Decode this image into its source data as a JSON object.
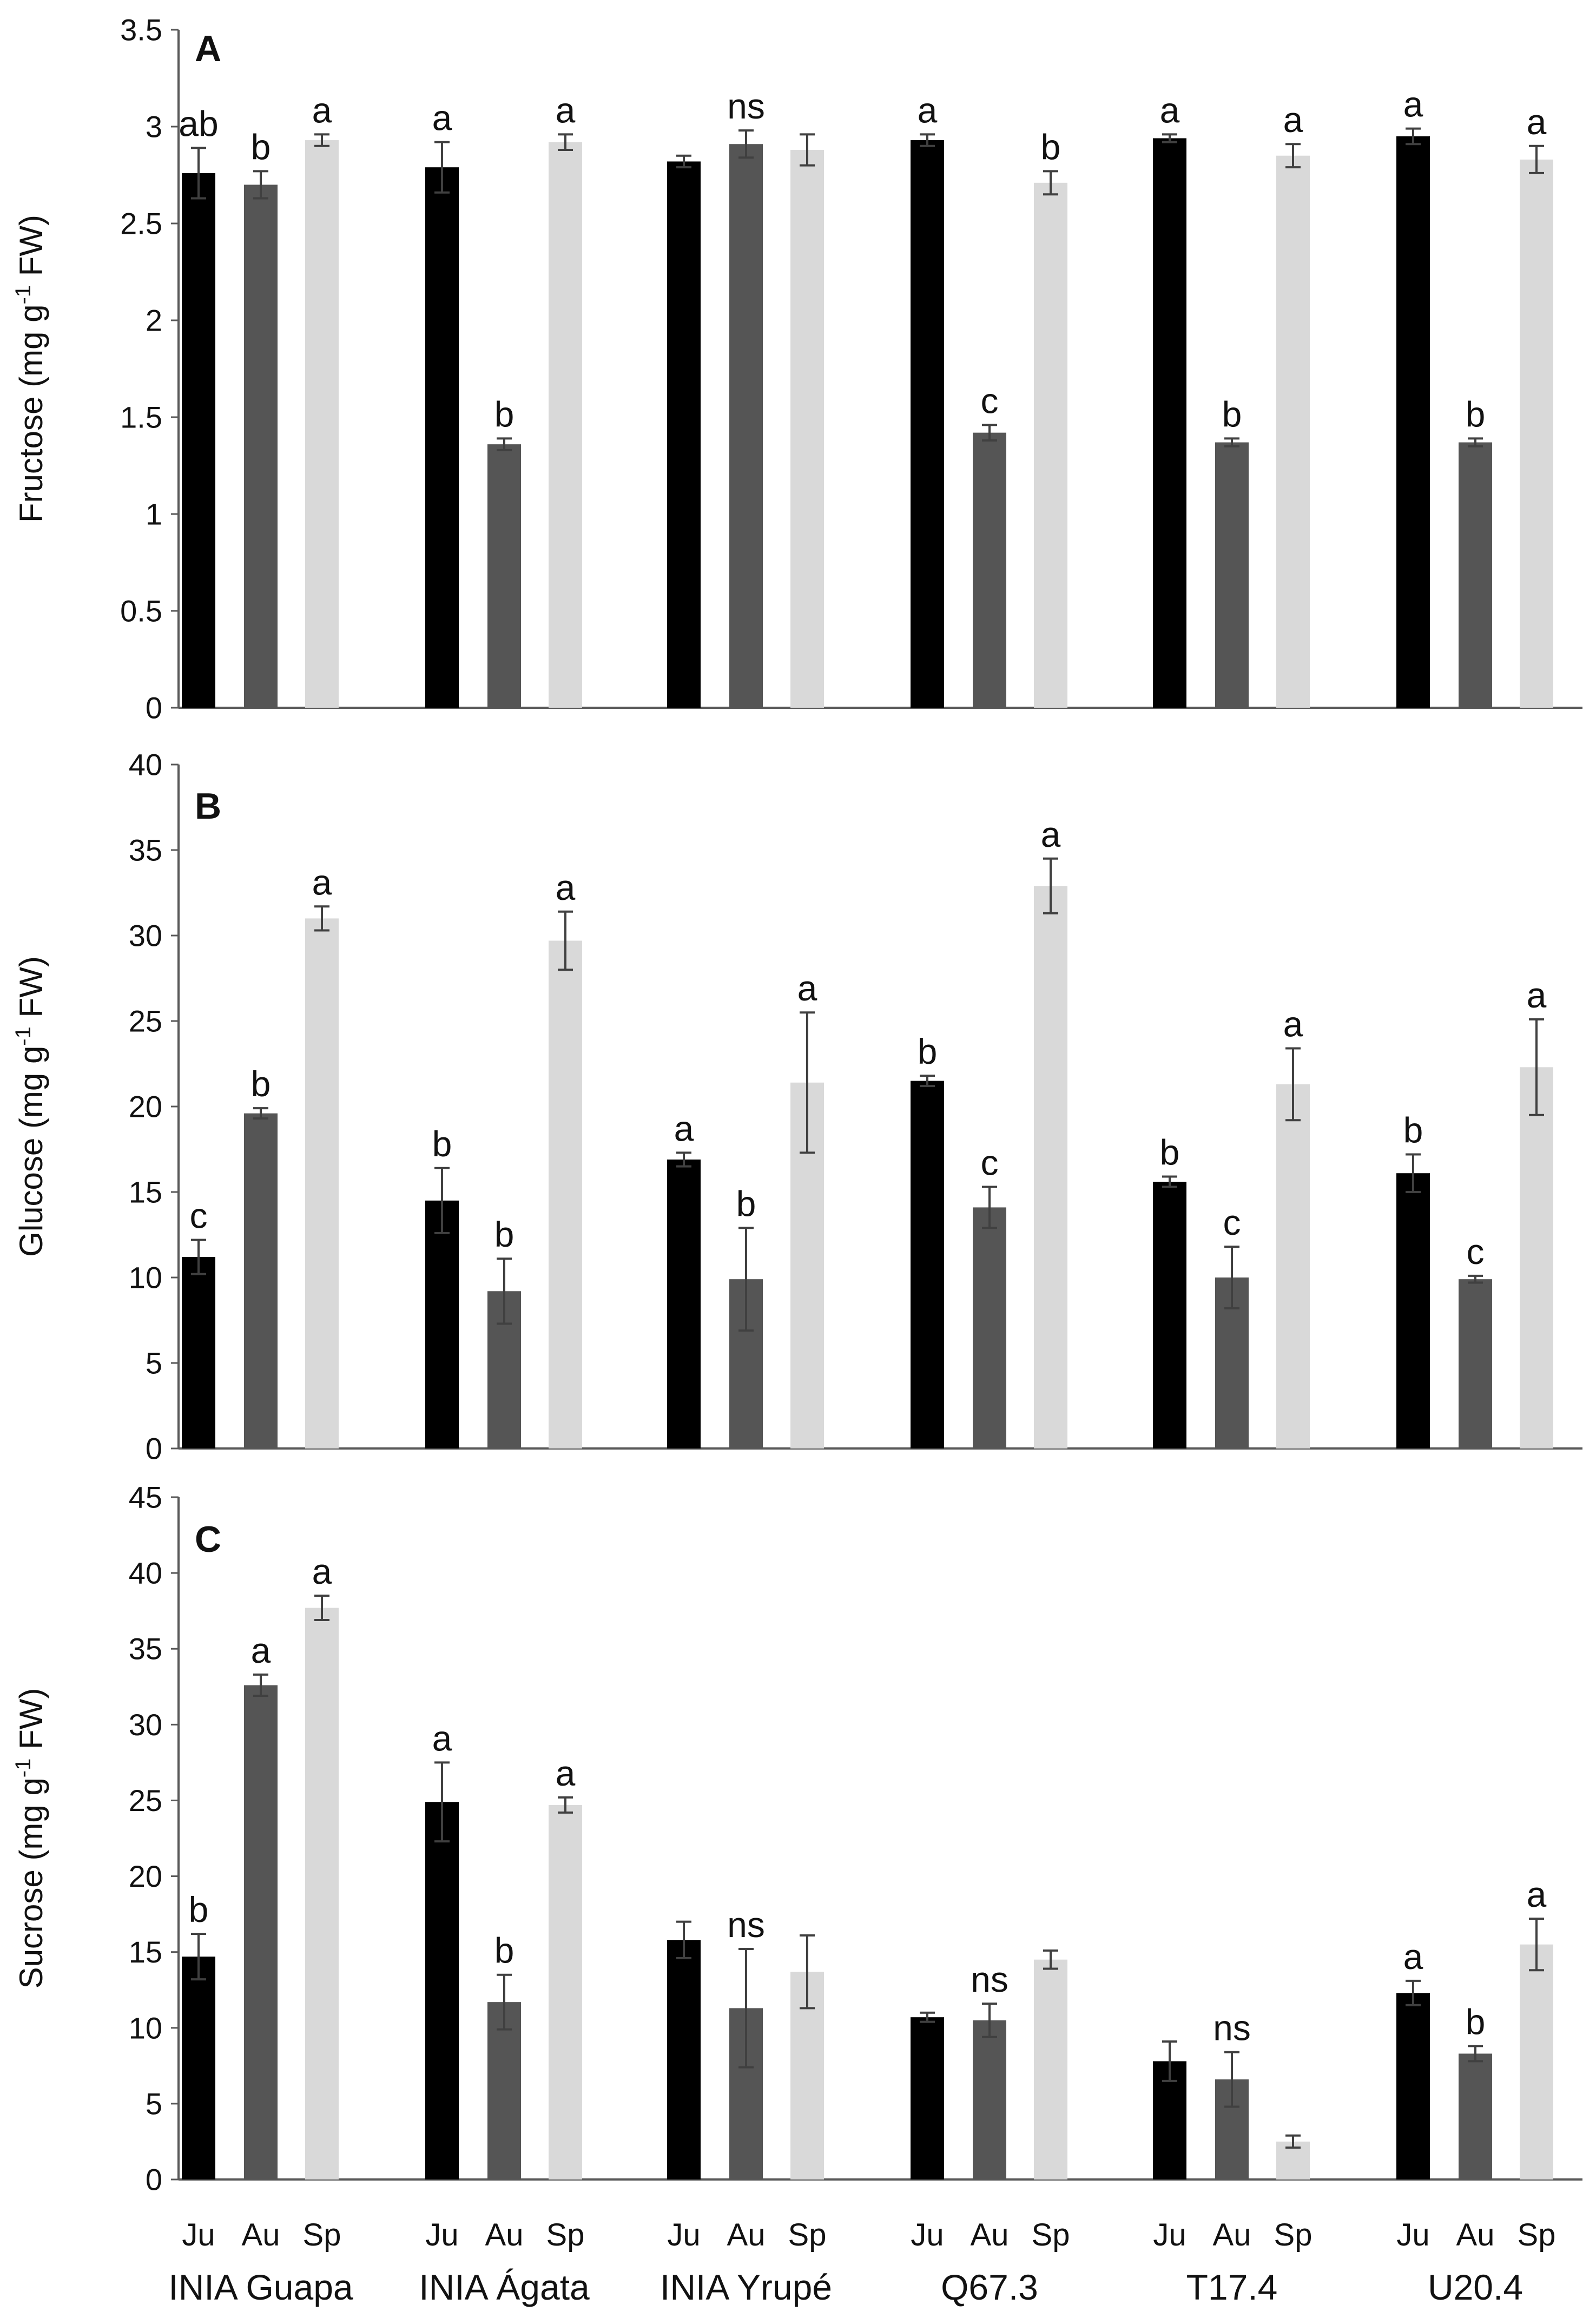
{
  "colors": {
    "Ju": "#000000",
    "Au": "#555555",
    "Sp": "#d9d9d9",
    "axis": "#595959",
    "errorbar": "#404040"
  },
  "chart_data": [
    {
      "type": "bar",
      "panel": "A",
      "ylabel_main": "Fructose (mg g",
      "ylabel_sup": "-1",
      "ylabel_tail": " FW)",
      "ylim": [
        0,
        3.5
      ],
      "yticks": [
        "0",
        "0.5",
        "1",
        "1.5",
        "2",
        "2.5",
        "3",
        "3.5"
      ],
      "categories": [
        "INIA Guapa",
        "INIA Ágata",
        "INIA Yrupé",
        "Q67.3",
        "T17.4",
        "U20.4"
      ],
      "seasons": [
        "Ju",
        "Au",
        "Sp"
      ],
      "values": [
        [
          2.76,
          2.7,
          2.93
        ],
        [
          2.79,
          1.36,
          2.92
        ],
        [
          2.82,
          2.91,
          2.88
        ],
        [
          2.93,
          1.42,
          2.71
        ],
        [
          2.94,
          1.37,
          2.85
        ],
        [
          2.95,
          1.37,
          2.83
        ]
      ],
      "errors": [
        [
          0.13,
          0.07,
          0.03
        ],
        [
          0.13,
          0.03,
          0.04
        ],
        [
          0.03,
          0.07,
          0.08
        ],
        [
          0.03,
          0.04,
          0.06
        ],
        [
          0.02,
          0.02,
          0.06
        ],
        [
          0.04,
          0.02,
          0.07
        ]
      ],
      "labels": [
        [
          "ab",
          "b",
          "a"
        ],
        [
          "a",
          "b",
          "a"
        ],
        [
          "",
          "ns",
          ""
        ],
        [
          "a",
          "c",
          "b"
        ],
        [
          "a",
          "b",
          "a"
        ],
        [
          "a",
          "b",
          "a"
        ]
      ]
    },
    {
      "type": "bar",
      "panel": "B",
      "ylabel_main": "Glucose (mg g",
      "ylabel_sup": "-1",
      "ylabel_tail": " FW)",
      "ylim": [
        0,
        40
      ],
      "yticks": [
        "0",
        "5",
        "10",
        "15",
        "20",
        "25",
        "30",
        "35",
        "40"
      ],
      "categories": [
        "INIA Guapa",
        "INIA Ágata",
        "INIA Yrupé",
        "Q67.3",
        "T17.4",
        "U20.4"
      ],
      "seasons": [
        "Ju",
        "Au",
        "Sp"
      ],
      "values": [
        [
          11.2,
          19.6,
          31.0
        ],
        [
          14.5,
          9.2,
          29.7
        ],
        [
          16.9,
          9.9,
          21.4
        ],
        [
          21.5,
          14.1,
          32.9
        ],
        [
          15.6,
          10.0,
          21.3
        ],
        [
          16.1,
          9.9,
          22.3
        ]
      ],
      "errors": [
        [
          1.0,
          0.3,
          0.7
        ],
        [
          1.9,
          1.9,
          1.7
        ],
        [
          0.4,
          3.0,
          4.1
        ],
        [
          0.3,
          1.2,
          1.6
        ],
        [
          0.3,
          1.8,
          2.1
        ],
        [
          1.1,
          0.2,
          2.8
        ]
      ],
      "labels": [
        [
          "c",
          "b",
          "a"
        ],
        [
          "b",
          "b",
          "a"
        ],
        [
          "a",
          "b",
          "a"
        ],
        [
          "b",
          "c",
          "a"
        ],
        [
          "b",
          "c",
          "a"
        ],
        [
          "b",
          "c",
          "a"
        ]
      ]
    },
    {
      "type": "bar",
      "panel": "C",
      "ylabel_main": "Sucrose (mg g",
      "ylabel_sup": "-1",
      "ylabel_tail": " FW)",
      "ylim": [
        0,
        45
      ],
      "yticks": [
        "0",
        "5",
        "10",
        "15",
        "20",
        "25",
        "30",
        "35",
        "40",
        "45"
      ],
      "categories": [
        "INIA Guapa",
        "INIA Ágata",
        "INIA Yrupé",
        "Q67.3",
        "T17.4",
        "U20.4"
      ],
      "seasons": [
        "Ju",
        "Au",
        "Sp"
      ],
      "values": [
        [
          14.7,
          32.6,
          37.7
        ],
        [
          24.9,
          11.7,
          24.7
        ],
        [
          15.8,
          11.3,
          13.7
        ],
        [
          10.7,
          10.5,
          14.5
        ],
        [
          7.8,
          6.6,
          2.5
        ],
        [
          12.3,
          8.3,
          15.5
        ]
      ],
      "errors": [
        [
          1.5,
          0.7,
          0.8
        ],
        [
          2.6,
          1.8,
          0.5
        ],
        [
          1.2,
          3.9,
          2.4
        ],
        [
          0.3,
          1.1,
          0.6
        ],
        [
          1.3,
          1.8,
          0.4
        ],
        [
          0.8,
          0.5,
          1.7
        ]
      ],
      "labels": [
        [
          "b",
          "a",
          "a"
        ],
        [
          "a",
          "b",
          "a"
        ],
        [
          "",
          "ns",
          ""
        ],
        [
          "",
          "ns",
          ""
        ],
        [
          "",
          "ns",
          ""
        ],
        [
          "a",
          "b",
          "a"
        ]
      ]
    }
  ]
}
